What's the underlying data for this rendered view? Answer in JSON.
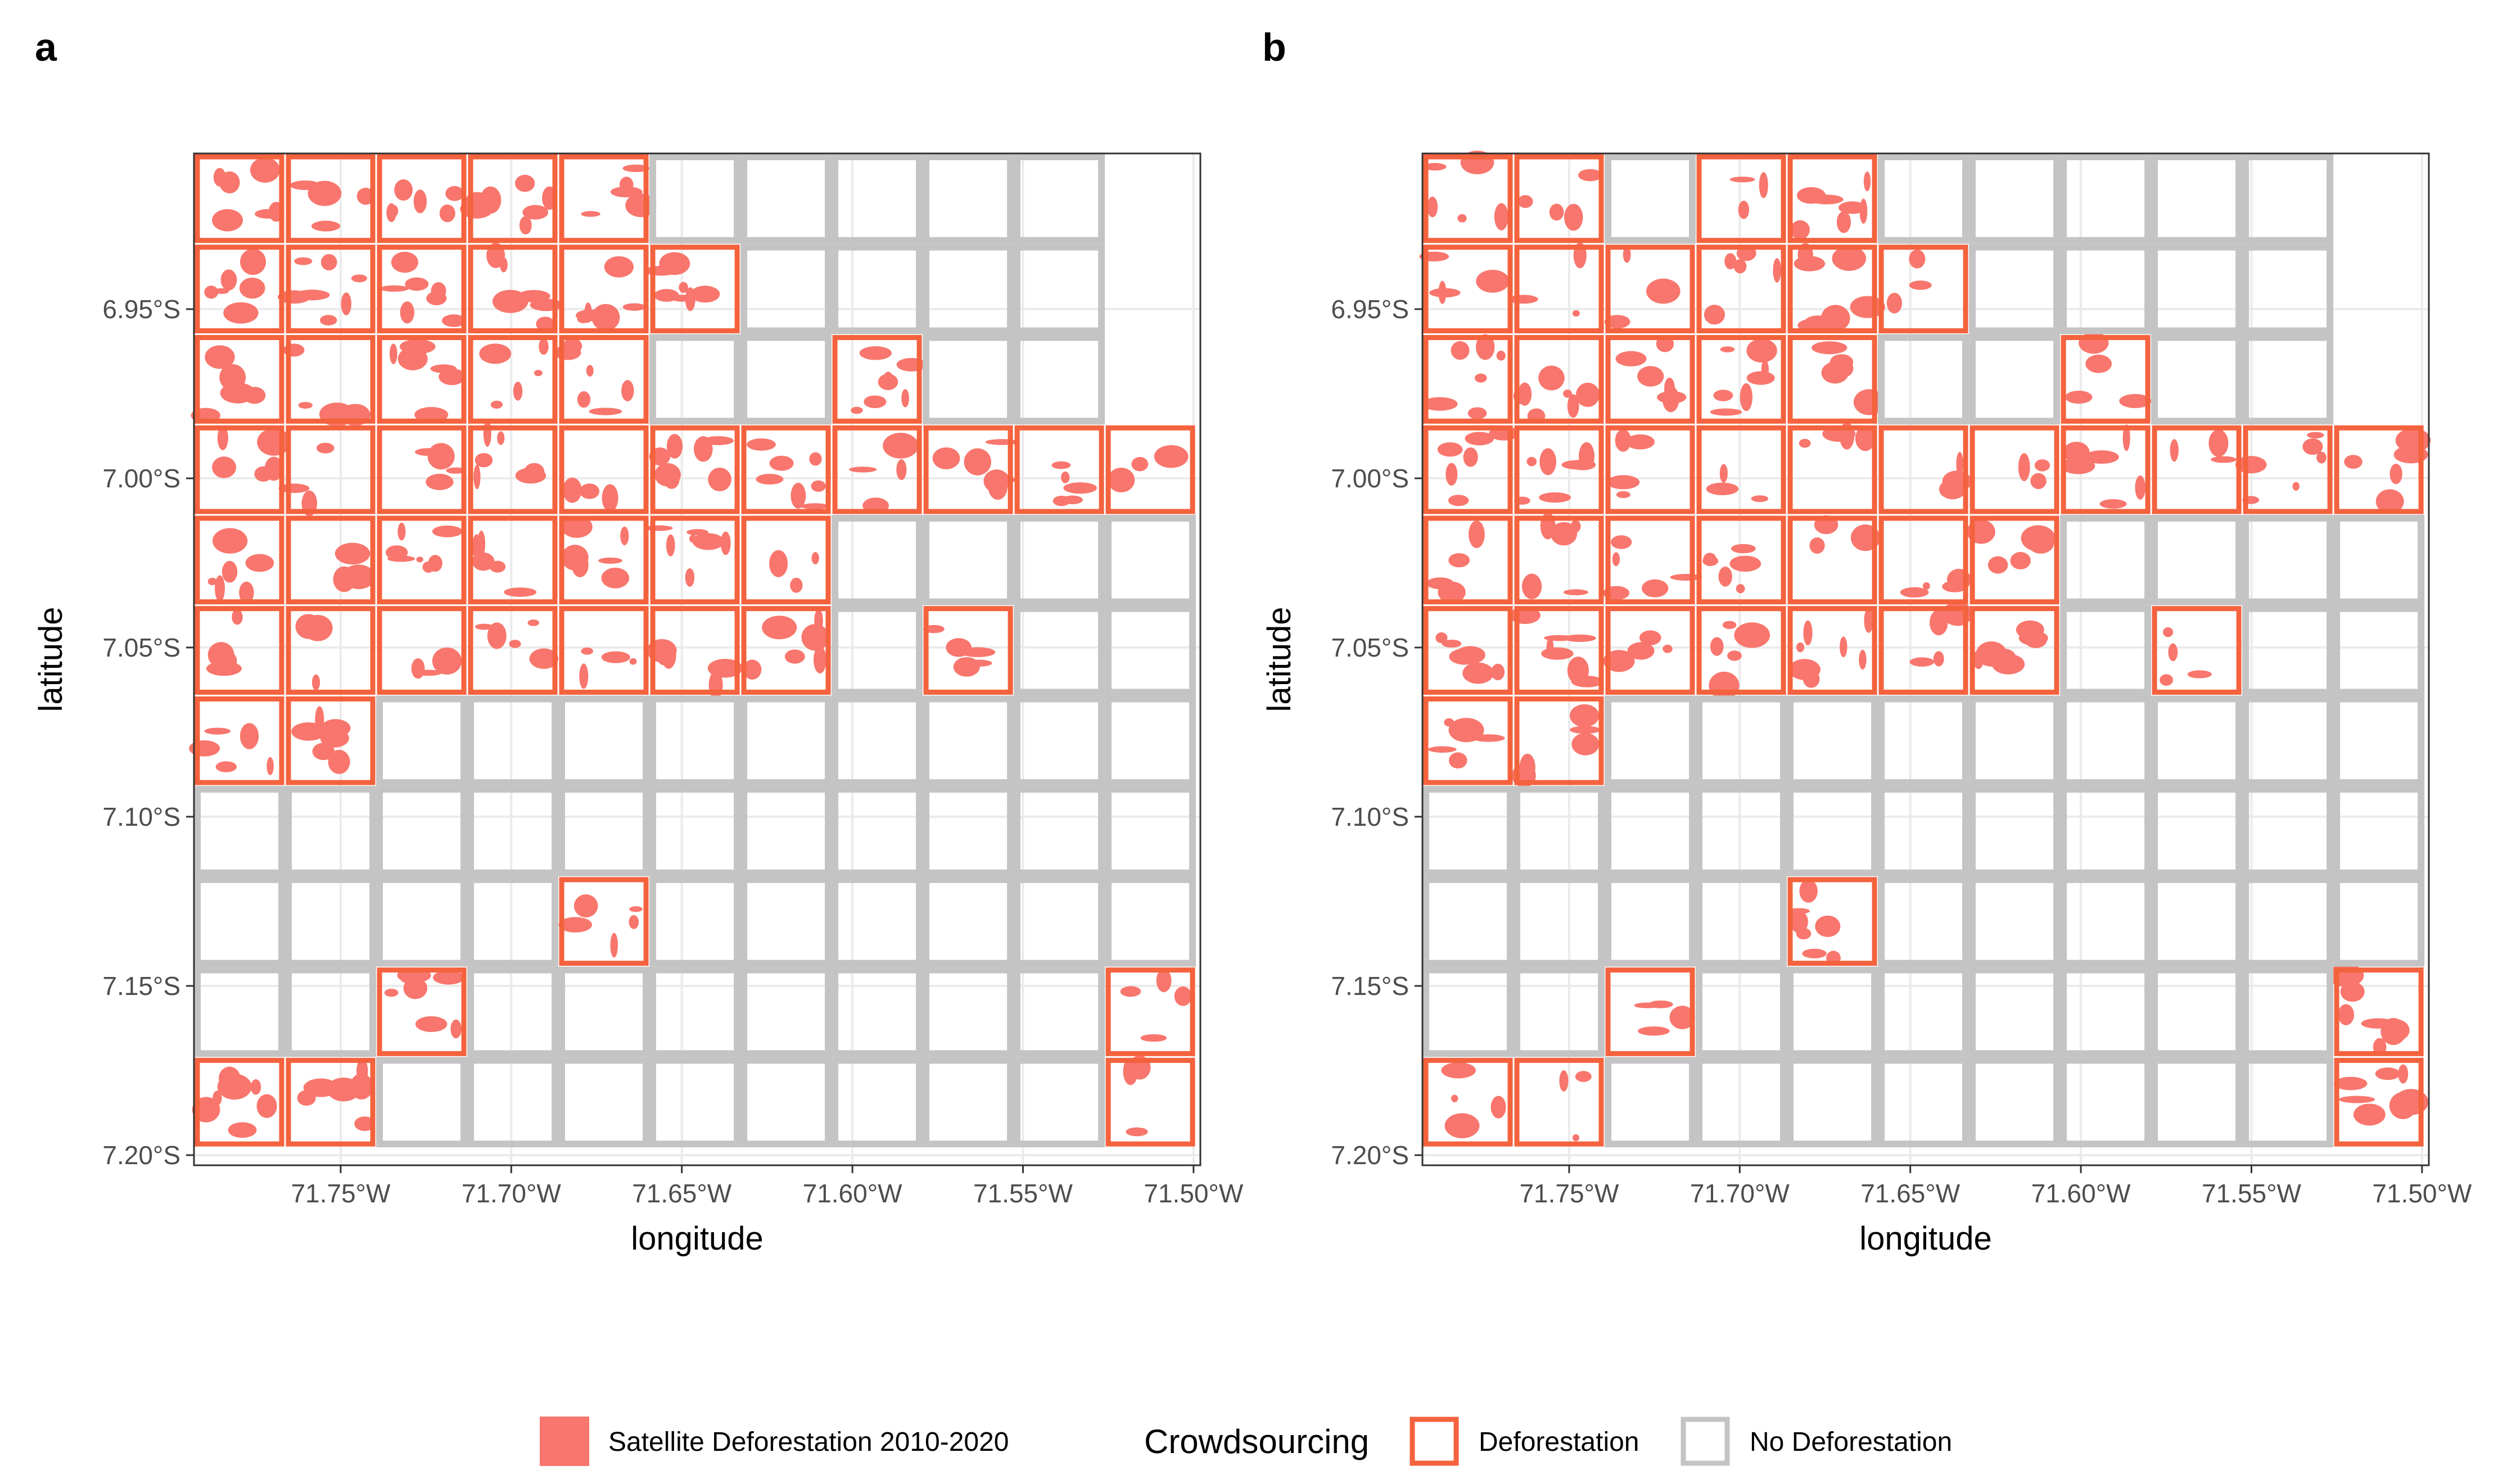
{
  "colors": {
    "deforestation_fill": "#f8766d",
    "deforestation_outline": "#f4623e",
    "no_deforestation_outline": "#c4c4c4",
    "grid": "#ebebeb",
    "panel_border": "#333333"
  },
  "chart_data": [
    {
      "type": "map",
      "panel": "a",
      "xlabel": "longitude",
      "ylabel": "latitude",
      "xlim": [
        -71.793,
        -71.498
      ],
      "ylim": [
        -7.203,
        -6.904
      ],
      "x_ticks": [
        {
          "value": -71.75,
          "label": "71.75°W"
        },
        {
          "value": -71.7,
          "label": "71.70°W"
        },
        {
          "value": -71.65,
          "label": "71.65°W"
        },
        {
          "value": -71.6,
          "label": "71.60°W"
        },
        {
          "value": -71.55,
          "label": "71.55°W"
        },
        {
          "value": -71.5,
          "label": "71.50°W"
        }
      ],
      "y_ticks": [
        {
          "value": -6.95,
          "label": "6.95°S"
        },
        {
          "value": -7.0,
          "label": "7.00°S"
        },
        {
          "value": -7.05,
          "label": "7.05°S"
        },
        {
          "value": -7.1,
          "label": "7.10°S"
        },
        {
          "value": -7.15,
          "label": "7.15°S"
        },
        {
          "value": -7.2,
          "label": "7.20°S"
        }
      ],
      "cell_grid": {
        "lon0": -71.793,
        "lat0": -6.904,
        "step": 0.0267,
        "rows": 11,
        "cols": 11
      },
      "cells": [
        "DDDDDNNNNN-",
        "DDDDDDNNNN-",
        "DDDDDNNDNN-",
        "DDDDDDDDDDD",
        "DDDDDDDNNNN",
        "DDDDDDDNDNN",
        "DDNNNNNNNNN",
        "NNNNNNNNNNN",
        "NNNNDNNNNNN",
        "NNDNNNNNNND",
        "DDNNNNNNNND"
      ]
    },
    {
      "type": "map",
      "panel": "b",
      "xlabel": "longitude",
      "ylabel": "latitude",
      "xlim": [
        -71.793,
        -71.498
      ],
      "ylim": [
        -7.203,
        -6.904
      ],
      "x_ticks": [
        {
          "value": -71.75,
          "label": "71.75°W"
        },
        {
          "value": -71.7,
          "label": "71.70°W"
        },
        {
          "value": -71.65,
          "label": "71.65°W"
        },
        {
          "value": -71.6,
          "label": "71.60°W"
        },
        {
          "value": -71.55,
          "label": "71.55°W"
        },
        {
          "value": -71.5,
          "label": "71.50°W"
        }
      ],
      "y_ticks": [
        {
          "value": -6.95,
          "label": "6.95°S"
        },
        {
          "value": -7.0,
          "label": "7.00°S"
        },
        {
          "value": -7.05,
          "label": "7.05°S"
        },
        {
          "value": -7.1,
          "label": "7.10°S"
        },
        {
          "value": -7.15,
          "label": "7.15°S"
        },
        {
          "value": -7.2,
          "label": "7.20°S"
        }
      ],
      "cell_grid": {
        "lon0": -71.793,
        "lat0": -6.904,
        "step": 0.0267,
        "rows": 11,
        "cols": 11
      },
      "cells": [
        "DDNDDNNNNN-",
        "DDDDDDNNNN-",
        "DDDDDNNDNN-",
        "DDDDDDDDDDD",
        "DDDDDDDNNNN",
        "DDDDDDDNDNN",
        "DDNNNNNNNNN",
        "NNNNNNNNNNN",
        "NNNNDNNNNNN",
        "NNDNNNNNNND",
        "DDNNNNNNNND"
      ]
    }
  ],
  "legend": {
    "satellite_label": "Satellite Deforestation 2010-2020",
    "crowd_title": "Crowdsourcing",
    "deforestation_label": "Deforestation",
    "no_deforestation_label": "No Deforestation"
  }
}
